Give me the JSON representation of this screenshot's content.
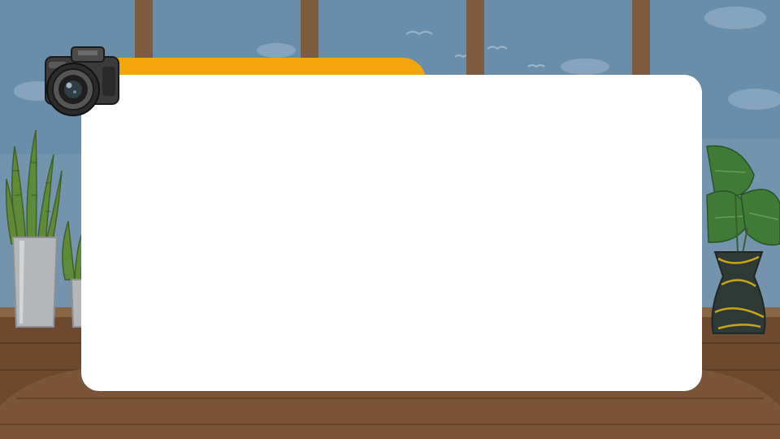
{
  "slide": {
    "title": "",
    "body": ""
  },
  "colors": {
    "sky": "#6a8eaa",
    "window_frame": "#7d5b3f",
    "wall_wood": "#6b4a30",
    "floor": "#7a5539",
    "tab_orange": "#f2a60c",
    "card_white": "#ffffff"
  },
  "icons": {
    "camera": "camera-icon",
    "left_plant": "snake-plant-icon",
    "right_plant": "monstera-plant-icon"
  }
}
